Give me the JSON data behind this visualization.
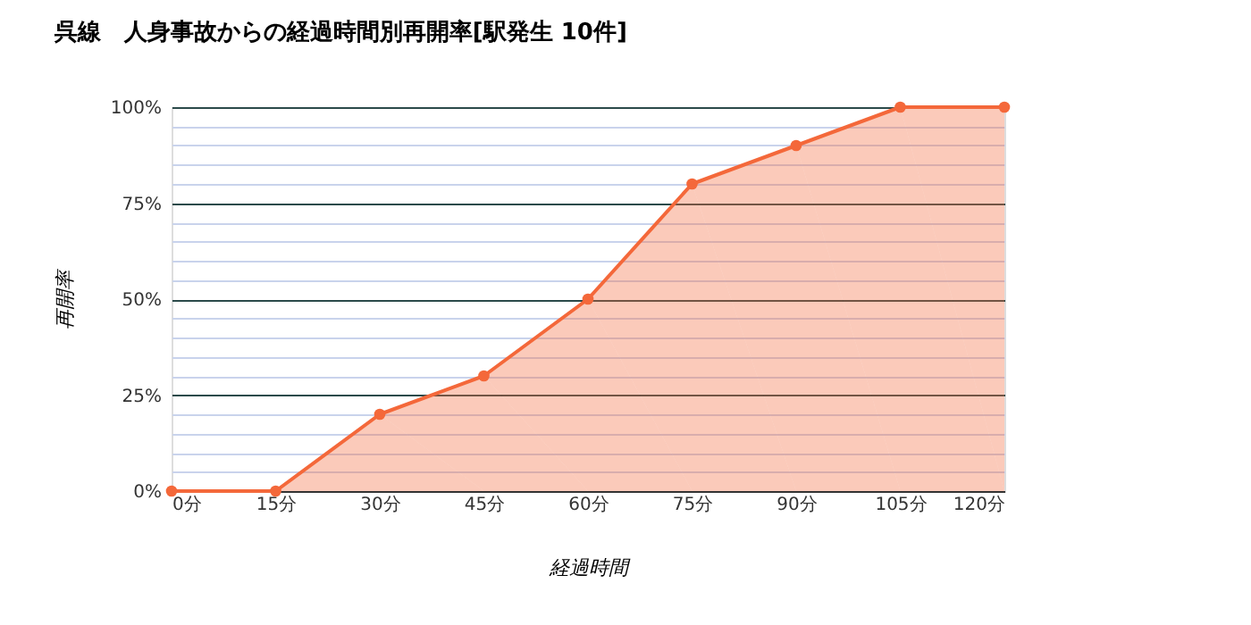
{
  "chart_data": {
    "type": "area",
    "title": "呉線　人身事故からの経過時間別再開率[駅発生 10件]",
    "xlabel": "経過時間",
    "ylabel": "再開率",
    "x": [
      0,
      15,
      30,
      45,
      60,
      75,
      90,
      105,
      120
    ],
    "series": [
      {
        "color": "#f4683a",
        "values": [
          0,
          0,
          20,
          30,
          50,
          80,
          90,
          100,
          100
        ]
      }
    ],
    "xlim": [
      0,
      120
    ],
    "xticks": [
      {
        "value": 0,
        "label": "0分"
      },
      {
        "value": 15,
        "label": "15分"
      },
      {
        "value": 30,
        "label": "30分"
      },
      {
        "value": 45,
        "label": "45分"
      },
      {
        "value": 60,
        "label": "60分"
      },
      {
        "value": 75,
        "label": "75分"
      },
      {
        "value": 90,
        "label": "90分"
      },
      {
        "value": 105,
        "label": "105分"
      },
      {
        "value": 120,
        "label": "120分"
      }
    ],
    "ylim": [
      0,
      100
    ],
    "yticks": [
      {
        "value": 0,
        "label": "0%"
      },
      {
        "value": 5,
        "label": null
      },
      {
        "value": 10,
        "label": null
      },
      {
        "value": 15,
        "label": null
      },
      {
        "value": 20,
        "label": null
      },
      {
        "value": 25,
        "label": "25%"
      },
      {
        "value": 30,
        "label": null
      },
      {
        "value": 35,
        "label": null
      },
      {
        "value": 40,
        "label": null
      },
      {
        "value": 45,
        "label": null
      },
      {
        "value": 50,
        "label": "50%"
      },
      {
        "value": 55,
        "label": null
      },
      {
        "value": 60,
        "label": null
      },
      {
        "value": 65,
        "label": null
      },
      {
        "value": 70,
        "label": null
      },
      {
        "value": 75,
        "label": "75%"
      },
      {
        "value": 80,
        "label": null
      },
      {
        "value": 85,
        "label": null
      },
      {
        "value": 90,
        "label": null
      },
      {
        "value": 95,
        "label": null
      },
      {
        "value": 100,
        "label": "100%"
      }
    ],
    "grid": "y",
    "marker": "circle",
    "line_style": "solid"
  }
}
